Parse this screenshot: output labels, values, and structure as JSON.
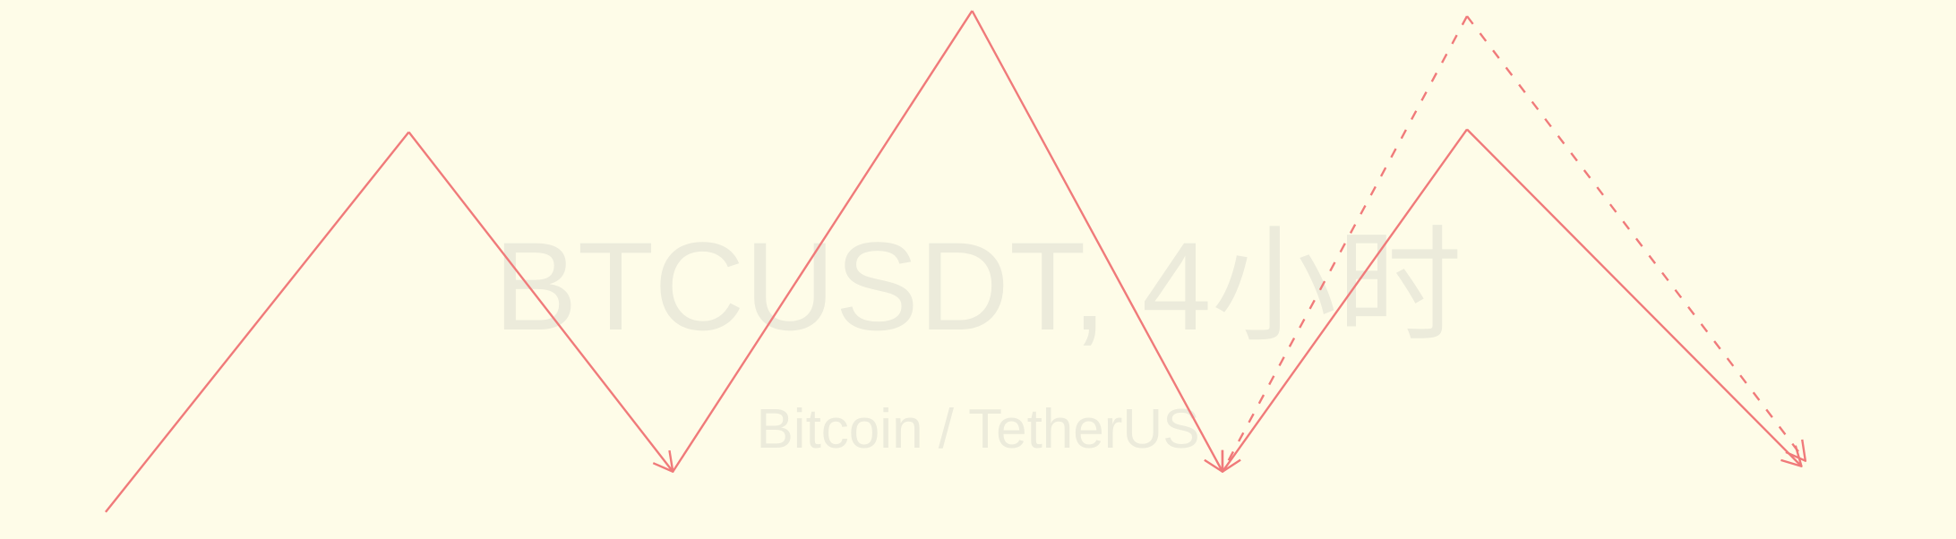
{
  "watermark": {
    "symbol_line": "BTCUSDT, 4小时",
    "description_line": "Bitcoin / TetherUS"
  },
  "colors": {
    "background": "#fefce8",
    "watermark_text": "#ecebdb",
    "pattern_line": "#f07a7a"
  },
  "chart_data": {
    "type": "line",
    "title": "",
    "xlabel": "",
    "ylabel": "",
    "grid": false,
    "axes_visible": false,
    "xlim": [
      0,
      100
    ],
    "ylim": [
      0,
      100
    ],
    "series": [
      {
        "style": "solid",
        "arrow": "none",
        "points": [
          [
            5.4,
            5
          ],
          [
            20.9,
            75.5
          ]
        ]
      },
      {
        "style": "solid",
        "arrow": "end",
        "points": [
          [
            20.9,
            75.5
          ],
          [
            34.4,
            12.5
          ]
        ]
      },
      {
        "style": "solid",
        "arrow": "none",
        "points": [
          [
            34.4,
            12.5
          ],
          [
            49.7,
            98
          ]
        ]
      },
      {
        "style": "solid",
        "arrow": "end",
        "points": [
          [
            49.7,
            98
          ],
          [
            62.5,
            12.5
          ]
        ]
      },
      {
        "style": "solid",
        "arrow": "none",
        "points": [
          [
            62.5,
            12.5
          ],
          [
            75.0,
            76
          ]
        ]
      },
      {
        "style": "solid",
        "arrow": "end",
        "points": [
          [
            75.0,
            76
          ],
          [
            92.1,
            13.5
          ]
        ]
      },
      {
        "style": "dashed",
        "arrow": "end",
        "points": [
          [
            75.0,
            97
          ],
          [
            62.5,
            12.5
          ]
        ]
      },
      {
        "style": "dashed",
        "arrow": "end",
        "points": [
          [
            75.0,
            97
          ],
          [
            92.3,
            14.5
          ]
        ]
      }
    ]
  }
}
